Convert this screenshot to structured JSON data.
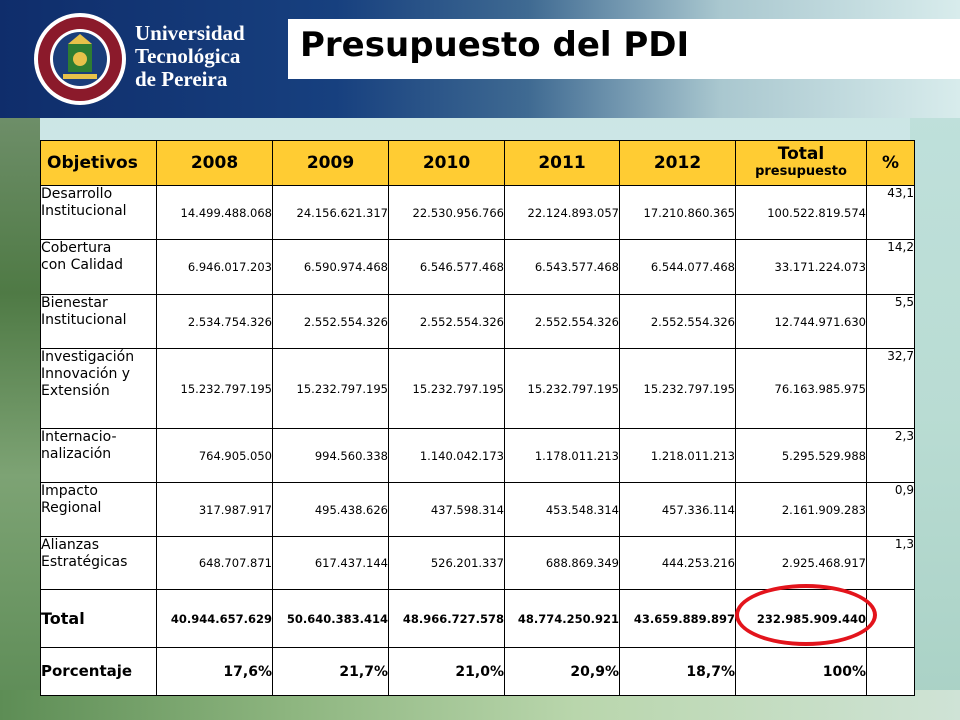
{
  "header": {
    "university_lines": [
      "Universidad",
      "Tecnológica",
      "de Pereira"
    ],
    "title": "Presupuesto del PDI",
    "logo_icon": "university-seal-icon"
  },
  "table": {
    "columns": [
      "Objetivos",
      "2008",
      "2009",
      "2010",
      "2011",
      "2012",
      "Total",
      "presupuesto",
      "%"
    ],
    "rows": [
      {
        "objective": "Desarrollo\nInstitucional",
        "values": [
          "14.499.488.068",
          "24.156.621.317",
          "22.530.956.766",
          "22.124.893.057",
          "17.210.860.365",
          "100.522.819.574"
        ],
        "percent": "43,1"
      },
      {
        "objective": "Cobertura\ncon Calidad",
        "values": [
          "6.946.017.203",
          "6.590.974.468",
          "6.546.577.468",
          "6.543.577.468",
          "6.544.077.468",
          "33.171.224.073"
        ],
        "percent": "14,2"
      },
      {
        "objective": "Bienestar\nInstitucional",
        "values": [
          "2.534.754.326",
          "2.552.554.326",
          "2.552.554.326",
          "2.552.554.326",
          "2.552.554.326",
          "12.744.971.630"
        ],
        "percent": "5,5"
      },
      {
        "objective": "Investigación\nInnovación y\nExtensión",
        "values": [
          "15.232.797.195",
          "15.232.797.195",
          "15.232.797.195",
          "15.232.797.195",
          "15.232.797.195",
          "76.163.985.975"
        ],
        "percent": "32,7"
      },
      {
        "objective": "Internacio-\nnalización",
        "values": [
          "764.905.050",
          "994.560.338",
          "1.140.042.173",
          "1.178.011.213",
          "1.218.011.213",
          "5.295.529.988"
        ],
        "percent": "2,3"
      },
      {
        "objective": "Impacto\nRegional",
        "values": [
          "317.987.917",
          "495.438.626",
          "437.598.314",
          "453.548.314",
          "457.336.114",
          "2.161.909.283"
        ],
        "percent": "0,9"
      },
      {
        "objective": "Alianzas\nEstratégicas",
        "values": [
          "648.707.871",
          "617.437.144",
          "526.201.337",
          "688.869.349",
          "444.253.216",
          "2.925.468.917"
        ],
        "percent": "1,3"
      }
    ],
    "total": {
      "label": "Total",
      "values": [
        "40.944.657.629",
        "50.640.383.414",
        "48.966.727.578",
        "48.774.250.921",
        "43.659.889.897",
        "232.985.909.440"
      ],
      "percent": ""
    },
    "percentage": {
      "label": "Porcentaje",
      "values": [
        "17,6%",
        "21,7%",
        "21,0%",
        "20,9%",
        "18,7%",
        "100%"
      ],
      "percent": ""
    }
  },
  "colors": {
    "header_bg": "#0f2d6b",
    "table_header_bg": "#ffcc33",
    "highlight": "#e3141c"
  }
}
